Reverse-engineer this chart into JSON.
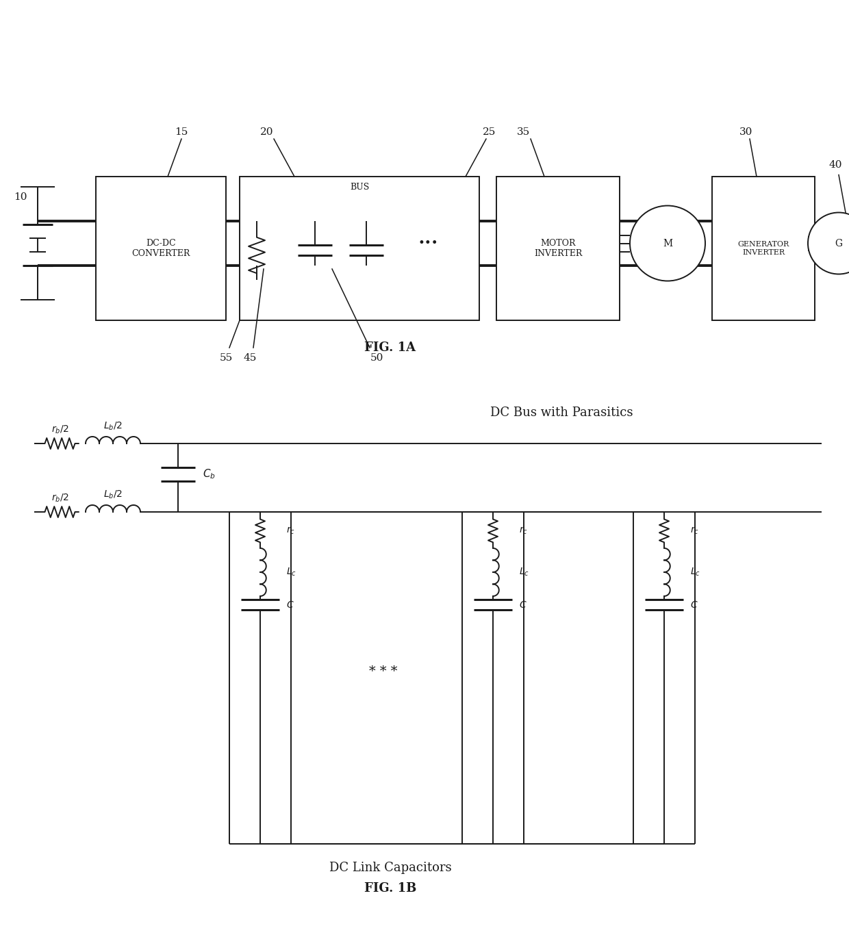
{
  "bg_color": "#ffffff",
  "line_color": "#1a1a1a",
  "fig_width": 12.4,
  "fig_height": 13.53,
  "fig1a_title": "FIG. 1A",
  "fig1b_title": "FIG. 1B",
  "label_10": "10",
  "label_15": "15",
  "label_20": "20",
  "label_25": "25",
  "label_30": "30",
  "label_35": "35",
  "label_40": "40",
  "label_45": "45",
  "label_50": "50",
  "label_55": "55",
  "bus_label": "BUS",
  "dc_dc_label": "DC-DC\nCONVERTER",
  "motor_inv_label": "MOTOR\nINVERTER",
  "gen_inv_label": "GENERATOR\nINVERTER",
  "fig1b_top_label": "DC Bus with Parasitics",
  "fig1b_bot_label": "DC Link Capacitors"
}
